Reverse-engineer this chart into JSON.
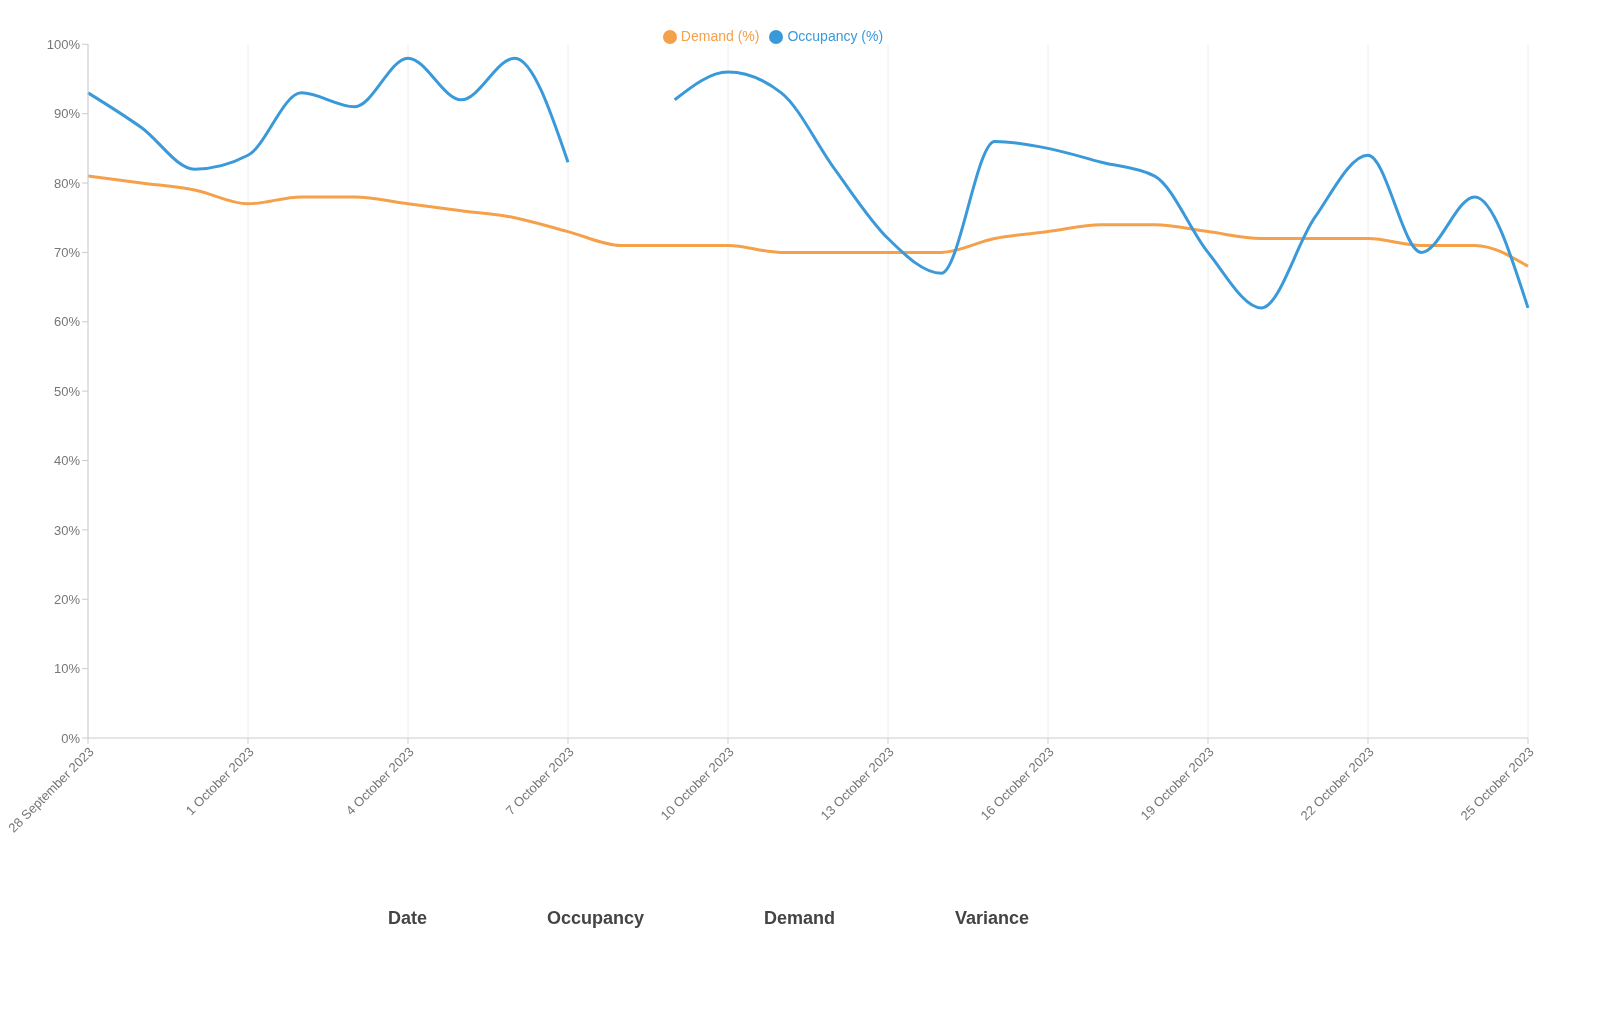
{
  "chart_data": {
    "type": "line",
    "categories": [
      "28 September 2023",
      null,
      null,
      "1 October 2023",
      null,
      null,
      "4 October 2023",
      null,
      null,
      "7 October 2023",
      null,
      null,
      "10 October 2023",
      null,
      null,
      "13 October 2023",
      null,
      null,
      "16 October 2023",
      null,
      null,
      "19 October 2023",
      null,
      null,
      "22 October 2023",
      null,
      null,
      "25 October 2023"
    ],
    "series": [
      {
        "name": "Demand (%)",
        "color": "#f5a04a",
        "values": [
          81,
          80,
          79,
          77,
          78,
          78,
          77,
          76,
          75,
          73,
          71,
          71,
          71,
          70,
          70,
          70,
          70,
          72,
          73,
          74,
          74,
          73,
          72,
          72,
          72,
          71,
          71,
          68
        ]
      },
      {
        "name": "Occupancy (%)",
        "color": "#3a9ad9",
        "values": [
          93,
          88,
          82,
          84,
          93,
          91,
          98,
          92,
          98,
          83,
          null,
          92,
          96,
          93,
          82,
          72,
          67,
          86,
          85,
          83,
          81,
          70,
          62,
          75,
          84,
          70,
          78,
          62
        ]
      }
    ],
    "ylim": [
      0,
      100
    ],
    "yticks": [
      {
        "value": 0,
        "label": "0%"
      },
      {
        "value": 10,
        "label": "10%"
      },
      {
        "value": 20,
        "label": "20%"
      },
      {
        "value": 30,
        "label": "30%"
      },
      {
        "value": 40,
        "label": "40%"
      },
      {
        "value": 50,
        "label": "50%"
      },
      {
        "value": 60,
        "label": "60%"
      },
      {
        "value": 70,
        "label": "70%"
      },
      {
        "value": 80,
        "label": "80%"
      },
      {
        "value": 90,
        "label": "90%"
      },
      {
        "value": 100,
        "label": "100%"
      }
    ],
    "grid": "x",
    "legend": "top",
    "marker": "none",
    "line_style": "solid",
    "annotations": [
      "Date",
      "Occupancy",
      "Demand",
      "Variance"
    ]
  }
}
